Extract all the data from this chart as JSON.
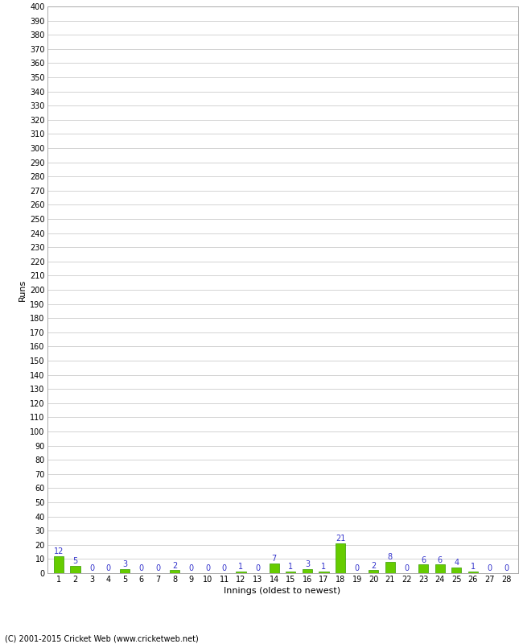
{
  "xlabel": "Innings (oldest to newest)",
  "ylabel": "Runs",
  "values": [
    12,
    5,
    0,
    0,
    3,
    0,
    0,
    2,
    0,
    0,
    0,
    1,
    0,
    7,
    1,
    3,
    1,
    21,
    0,
    2,
    8,
    0,
    6,
    6,
    4,
    1,
    0,
    0
  ],
  "categories": [
    "1",
    "2",
    "3",
    "4",
    "5",
    "6",
    "7",
    "8",
    "9",
    "10",
    "11",
    "12",
    "13",
    "14",
    "15",
    "16",
    "17",
    "18",
    "19",
    "20",
    "21",
    "22",
    "23",
    "24",
    "25",
    "26",
    "27",
    "28"
  ],
  "bar_color": "#66cc00",
  "bar_edge_color": "#339900",
  "label_color": "#3333cc",
  "ylim": [
    0,
    400
  ],
  "ytick_step": 10,
  "background_color": "#ffffff",
  "grid_color": "#cccccc",
  "footer": "(C) 2001-2015 Cricket Web (www.cricketweb.net)",
  "label_fontsize": 7,
  "axis_tick_fontsize": 7,
  "axis_label_fontsize": 8
}
